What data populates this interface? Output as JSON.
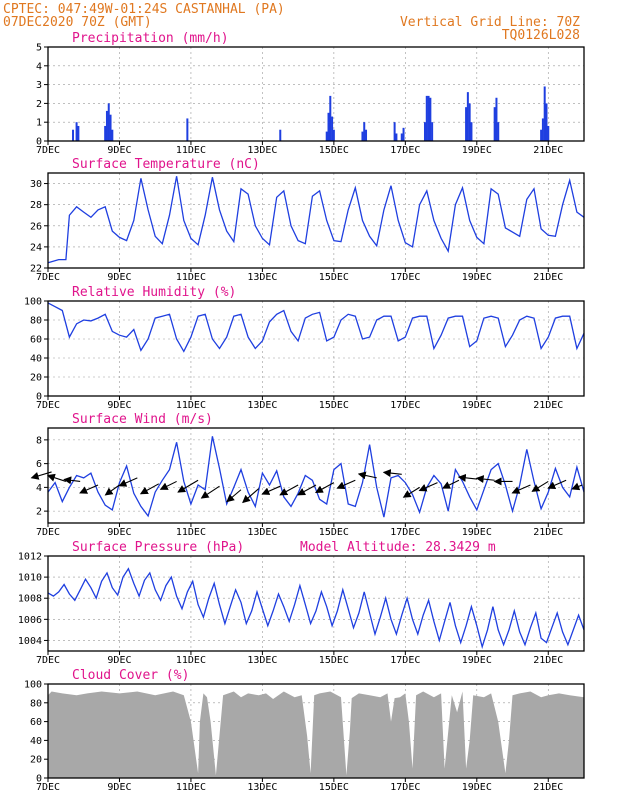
{
  "header": {
    "line1": "CPTEC:   047:49W-01:24S   CASTANHAL (PA)",
    "line2": "07DEC2020 70Z (GMT)",
    "grid_line": "Vertical Grid Line: 70Z",
    "code": "TQ0126L028"
  },
  "colors": {
    "header": "#e07820",
    "title": "#e0148c",
    "series": "#1f3fe0",
    "cloud": "#a8a8a8"
  },
  "chart_data": [
    {
      "id": "precip",
      "type": "bar",
      "title": "Precipitation (mm/h)",
      "x_start_day": 7,
      "x_days": 15,
      "xticks": [
        "7DEC",
        "9DEC",
        "11DEC",
        "13DEC",
        "15DEC",
        "17DEC",
        "19DEC",
        "21DEC"
      ],
      "ylim": [
        0,
        5
      ],
      "yticks": [
        0,
        1,
        2,
        3,
        4,
        5
      ],
      "bars": [
        [
          7.7,
          0.6
        ],
        [
          7.8,
          1.0
        ],
        [
          7.85,
          0.8
        ],
        [
          8.6,
          0.8
        ],
        [
          8.65,
          1.6
        ],
        [
          8.7,
          2.0
        ],
        [
          8.75,
          1.4
        ],
        [
          8.8,
          0.6
        ],
        [
          10.9,
          1.2
        ],
        [
          13.5,
          0.6
        ],
        [
          14.8,
          0.5
        ],
        [
          14.85,
          1.5
        ],
        [
          14.9,
          2.4
        ],
        [
          14.95,
          1.3
        ],
        [
          15.0,
          0.6
        ],
        [
          15.8,
          0.5
        ],
        [
          15.85,
          1.0
        ],
        [
          15.9,
          0.6
        ],
        [
          16.7,
          1.0
        ],
        [
          16.75,
          0.4
        ],
        [
          16.9,
          0.4
        ],
        [
          16.95,
          0.7
        ],
        [
          17.55,
          1.0
        ],
        [
          17.6,
          2.4
        ],
        [
          17.65,
          2.4
        ],
        [
          17.7,
          2.3
        ],
        [
          17.75,
          1.0
        ],
        [
          18.7,
          1.8
        ],
        [
          18.75,
          2.6
        ],
        [
          18.8,
          2.0
        ],
        [
          18.85,
          1.0
        ],
        [
          19.5,
          1.8
        ],
        [
          19.55,
          2.3
        ],
        [
          19.6,
          1.0
        ],
        [
          20.8,
          0.6
        ],
        [
          20.85,
          1.2
        ],
        [
          20.9,
          2.9
        ],
        [
          20.95,
          2.0
        ],
        [
          21.0,
          0.8
        ]
      ]
    },
    {
      "id": "temp",
      "type": "line",
      "title": "Surface Temperature (nC)",
      "x_start_day": 7,
      "x_days": 15,
      "xticks": [
        "7DEC",
        "9DEC",
        "11DEC",
        "13DEC",
        "15DEC",
        "17DEC",
        "19DEC",
        "21DEC"
      ],
      "ylim": [
        22,
        31
      ],
      "yticks": [
        22,
        24,
        26,
        28,
        30
      ],
      "x": [
        7.0,
        7.3,
        7.5,
        7.6,
        7.8,
        8.0,
        8.2,
        8.4,
        8.6,
        8.8,
        9.0,
        9.2,
        9.4,
        9.6,
        9.8,
        10.0,
        10.2,
        10.4,
        10.6,
        10.8,
        11.0,
        11.2,
        11.4,
        11.6,
        11.8,
        12.0,
        12.2,
        12.4,
        12.6,
        12.8,
        13.0,
        13.2,
        13.4,
        13.6,
        13.8,
        14.0,
        14.2,
        14.4,
        14.6,
        14.8,
        15.0,
        15.2,
        15.4,
        15.6,
        15.8,
        16.0,
        16.2,
        16.4,
        16.6,
        16.8,
        17.0,
        17.2,
        17.4,
        17.6,
        17.8,
        18.0,
        18.2,
        18.4,
        18.6,
        18.8,
        19.0,
        19.2,
        19.4,
        19.6,
        19.8,
        20.0,
        20.2,
        20.4,
        20.6,
        20.8,
        21.0,
        21.2,
        21.4,
        21.6,
        21.8,
        22.0
      ],
      "y": [
        22.5,
        22.8,
        22.8,
        27.0,
        27.8,
        27.3,
        26.8,
        27.5,
        27.8,
        25.5,
        24.9,
        24.6,
        26.5,
        30.5,
        27.5,
        25.0,
        24.3,
        27.0,
        30.7,
        26.5,
        24.8,
        24.2,
        27.0,
        30.6,
        27.5,
        25.5,
        24.5,
        29.5,
        29.0,
        26.0,
        24.8,
        24.2,
        28.7,
        29.3,
        26.0,
        24.6,
        24.3,
        28.8,
        29.3,
        26.5,
        24.6,
        24.5,
        27.5,
        29.6,
        26.5,
        25.0,
        24.1,
        27.5,
        29.8,
        26.5,
        24.4,
        24.0,
        28.0,
        29.3,
        26.5,
        24.8,
        23.6,
        28.0,
        29.6,
        26.5,
        24.9,
        24.3,
        29.5,
        29.0,
        25.8,
        25.4,
        25.0,
        28.5,
        29.5,
        25.7,
        25.1,
        25.0,
        28.0,
        30.3,
        27.3,
        26.8
      ]
    },
    {
      "id": "rh",
      "type": "line",
      "title": "Relative Humidity (%)",
      "x_start_day": 7,
      "x_days": 15,
      "xticks": [
        "7DEC",
        "9DEC",
        "11DEC",
        "13DEC",
        "15DEC",
        "17DEC",
        "19DEC",
        "21DEC"
      ],
      "ylim": [
        0,
        100
      ],
      "yticks": [
        0,
        20,
        40,
        60,
        80,
        100
      ],
      "x": [
        7.0,
        7.2,
        7.4,
        7.6,
        7.8,
        8.0,
        8.2,
        8.4,
        8.6,
        8.8,
        9.0,
        9.2,
        9.4,
        9.6,
        9.8,
        10.0,
        10.2,
        10.4,
        10.6,
        10.8,
        11.0,
        11.2,
        11.4,
        11.6,
        11.8,
        12.0,
        12.2,
        12.4,
        12.6,
        12.8,
        13.0,
        13.2,
        13.4,
        13.6,
        13.8,
        14.0,
        14.2,
        14.4,
        14.6,
        14.8,
        15.0,
        15.2,
        15.4,
        15.6,
        15.8,
        16.0,
        16.2,
        16.4,
        16.6,
        16.8,
        17.0,
        17.2,
        17.4,
        17.6,
        17.8,
        18.0,
        18.2,
        18.4,
        18.6,
        18.8,
        19.0,
        19.2,
        19.4,
        19.6,
        19.8,
        20.0,
        20.2,
        20.4,
        20.6,
        20.8,
        21.0,
        21.2,
        21.4,
        21.6,
        21.8,
        22.0
      ],
      "y": [
        98,
        94,
        90,
        62,
        76,
        80,
        79,
        82,
        86,
        68,
        64,
        62,
        70,
        48,
        60,
        82,
        84,
        86,
        60,
        47,
        62,
        84,
        86,
        60,
        50,
        62,
        84,
        86,
        62,
        50,
        58,
        78,
        86,
        90,
        68,
        58,
        82,
        86,
        88,
        58,
        62,
        80,
        86,
        84,
        60,
        62,
        80,
        84,
        84,
        58,
        62,
        82,
        84,
        84,
        50,
        64,
        82,
        84,
        84,
        52,
        58,
        82,
        84,
        82,
        52,
        64,
        80,
        84,
        82,
        50,
        62,
        82,
        84,
        84,
        50,
        66
      ]
    },
    {
      "id": "wind",
      "type": "line",
      "title": "Surface Wind (m/s)",
      "x_start_day": 7,
      "x_days": 15,
      "xticks": [
        "7DEC",
        "9DEC",
        "11DEC",
        "13DEC",
        "15DEC",
        "17DEC",
        "19DEC",
        "21DEC"
      ],
      "ylim": [
        1,
        9
      ],
      "yticks": [
        2,
        4,
        6,
        8
      ],
      "x": [
        7.0,
        7.2,
        7.4,
        7.6,
        7.8,
        8.0,
        8.2,
        8.4,
        8.6,
        8.8,
        9.0,
        9.2,
        9.4,
        9.6,
        9.8,
        10.0,
        10.2,
        10.4,
        10.6,
        10.8,
        11.0,
        11.2,
        11.4,
        11.6,
        11.8,
        12.0,
        12.2,
        12.4,
        12.6,
        12.8,
        13.0,
        13.2,
        13.4,
        13.6,
        13.8,
        14.0,
        14.2,
        14.4,
        14.6,
        14.8,
        15.0,
        15.2,
        15.4,
        15.6,
        15.8,
        16.0,
        16.2,
        16.4,
        16.6,
        16.8,
        17.0,
        17.2,
        17.4,
        17.6,
        17.8,
        18.0,
        18.2,
        18.4,
        18.6,
        18.8,
        19.0,
        19.2,
        19.4,
        19.6,
        19.8,
        20.0,
        20.2,
        20.4,
        20.6,
        20.8,
        21.0,
        21.2,
        21.4,
        21.6,
        21.8,
        22.0
      ],
      "y": [
        3.6,
        4.4,
        2.8,
        4.0,
        5.0,
        4.8,
        5.2,
        3.6,
        2.5,
        2.1,
        4.4,
        5.8,
        3.5,
        2.4,
        1.6,
        3.6,
        4.6,
        5.5,
        7.8,
        4.5,
        2.6,
        4.2,
        3.8,
        8.3,
        5.6,
        2.6,
        4.0,
        5.5,
        3.6,
        2.4,
        5.2,
        4.2,
        5.4,
        3.2,
        2.4,
        3.5,
        5.0,
        4.6,
        3.0,
        2.6,
        5.5,
        6.0,
        2.6,
        2.4,
        4.4,
        7.6,
        4.0,
        1.5,
        4.8,
        5.0,
        4.4,
        3.4,
        1.9,
        4.0,
        5.0,
        4.3,
        2.0,
        5.5,
        4.5,
        3.2,
        2.1,
        3.8,
        5.5,
        6.0,
        4.2,
        2.0,
        4.2,
        7.2,
        4.5,
        2.2,
        3.6,
        5.6,
        4.0,
        3.2,
        5.7,
        3.6
      ],
      "vectors": [
        [
          7.1,
          5.3,
          -1.0,
          -0.3
        ],
        [
          7.5,
          4.5,
          -0.9,
          0.3
        ],
        [
          7.9,
          4.5,
          -0.8,
          0.1
        ],
        [
          8.4,
          4.2,
          -0.9,
          -0.4
        ],
        [
          9.0,
          4.2,
          -0.7,
          -0.5
        ],
        [
          9.5,
          4.8,
          -0.9,
          -0.4
        ],
        [
          10.1,
          4.3,
          -0.9,
          -0.5
        ],
        [
          10.6,
          4.5,
          -0.8,
          -0.4
        ],
        [
          11.2,
          4.6,
          -1.0,
          -0.6
        ],
        [
          11.8,
          4.1,
          -0.9,
          -0.6
        ],
        [
          12.4,
          3.8,
          -0.7,
          -0.6
        ],
        [
          12.9,
          3.9,
          -0.8,
          -0.7
        ],
        [
          13.5,
          4.1,
          -0.9,
          -0.4
        ],
        [
          14.0,
          4.2,
          -0.9,
          -0.5
        ],
        [
          14.5,
          4.2,
          -0.9,
          -0.5
        ],
        [
          15.0,
          4.4,
          -0.9,
          -0.5
        ],
        [
          15.6,
          4.6,
          -0.9,
          -0.4
        ],
        [
          16.2,
          4.8,
          -0.9,
          0.2
        ],
        [
          16.9,
          5.1,
          -0.9,
          0.1
        ],
        [
          17.4,
          4.0,
          -0.8,
          -0.5
        ],
        [
          17.9,
          4.4,
          -0.9,
          -0.4
        ],
        [
          18.5,
          4.6,
          -0.8,
          -0.4
        ],
        [
          19.0,
          4.7,
          -0.9,
          0.1
        ],
        [
          19.5,
          4.6,
          -0.9,
          0.1
        ],
        [
          20.0,
          4.5,
          -0.9,
          0.0
        ],
        [
          20.5,
          4.2,
          -0.9,
          -0.4
        ],
        [
          21.0,
          4.5,
          -0.8,
          -0.5
        ],
        [
          21.5,
          4.6,
          -0.9,
          -0.4
        ],
        [
          21.95,
          4.2,
          -0.5,
          -0.2
        ]
      ]
    },
    {
      "id": "pressure",
      "type": "line",
      "title": "Surface Pressure (hPa)",
      "annotation": "Model Altitude: 28.3429 m",
      "x_start_day": 7,
      "x_days": 15,
      "xticks": [
        "7DEC",
        "9DEC",
        "11DEC",
        "13DEC",
        "15DEC",
        "17DEC",
        "19DEC",
        "21DEC"
      ],
      "ylim": [
        1003,
        1012
      ],
      "yticks": [
        1004,
        1006,
        1008,
        1010,
        1012
      ],
      "x": [
        7.0,
        7.15,
        7.3,
        7.45,
        7.6,
        7.75,
        7.9,
        8.05,
        8.2,
        8.35,
        8.5,
        8.65,
        8.8,
        8.95,
        9.1,
        9.25,
        9.4,
        9.55,
        9.7,
        9.85,
        10.0,
        10.15,
        10.3,
        10.45,
        10.6,
        10.75,
        10.9,
        11.05,
        11.2,
        11.35,
        11.5,
        11.65,
        11.8,
        11.95,
        12.1,
        12.25,
        12.4,
        12.55,
        12.7,
        12.85,
        13.0,
        13.15,
        13.3,
        13.45,
        13.6,
        13.75,
        13.9,
        14.05,
        14.2,
        14.35,
        14.5,
        14.65,
        14.8,
        14.95,
        15.1,
        15.25,
        15.4,
        15.55,
        15.7,
        15.85,
        16.0,
        16.15,
        16.3,
        16.45,
        16.6,
        16.75,
        16.9,
        17.05,
        17.2,
        17.35,
        17.5,
        17.65,
        17.8,
        17.95,
        18.1,
        18.25,
        18.4,
        18.55,
        18.7,
        18.85,
        19.0,
        19.15,
        19.3,
        19.45,
        19.6,
        19.75,
        19.9,
        20.05,
        20.2,
        20.35,
        20.5,
        20.65,
        20.8,
        20.95,
        21.1,
        21.25,
        21.4,
        21.55,
        21.7,
        21.85,
        22.0
      ],
      "y": [
        1008.5,
        1008.2,
        1008.6,
        1009.3,
        1008.4,
        1007.8,
        1008.8,
        1009.8,
        1009.0,
        1008.0,
        1009.6,
        1010.4,
        1009.0,
        1008.3,
        1010.0,
        1010.8,
        1009.4,
        1008.2,
        1009.7,
        1010.4,
        1008.8,
        1007.8,
        1009.2,
        1010.0,
        1008.2,
        1007.0,
        1008.6,
        1009.6,
        1007.4,
        1006.2,
        1008.0,
        1009.4,
        1007.4,
        1005.6,
        1007.2,
        1008.8,
        1007.6,
        1005.6,
        1006.8,
        1008.6,
        1007.0,
        1005.4,
        1006.8,
        1008.4,
        1007.2,
        1005.8,
        1007.4,
        1009.2,
        1007.4,
        1005.6,
        1006.8,
        1008.6,
        1007.2,
        1005.4,
        1006.8,
        1008.8,
        1007.0,
        1005.2,
        1006.6,
        1008.6,
        1006.6,
        1004.6,
        1006.2,
        1008.0,
        1006.0,
        1004.6,
        1006.4,
        1008.0,
        1006.0,
        1004.6,
        1006.4,
        1007.8,
        1005.8,
        1004.0,
        1005.8,
        1007.6,
        1005.4,
        1003.8,
        1005.4,
        1007.2,
        1005.4,
        1003.4,
        1005.0,
        1007.2,
        1005.0,
        1003.6,
        1005.0,
        1006.8,
        1004.8,
        1003.6,
        1005.2,
        1006.6,
        1004.2,
        1003.8,
        1005.2,
        1006.6,
        1004.8,
        1003.6,
        1005.0,
        1006.4,
        1005.0
      ]
    },
    {
      "id": "cloud",
      "type": "area",
      "title": "Cloud Cover (%)",
      "x_start_day": 7,
      "x_days": 15,
      "xticks": [
        "7DEC",
        "9DEC",
        "11DEC",
        "13DEC",
        "15DEC",
        "17DEC",
        "19DEC",
        "21DEC"
      ],
      "ylim": [
        0,
        100
      ],
      "yticks": [
        0,
        20,
        40,
        60,
        80,
        100
      ],
      "x": [
        7.0,
        7.1,
        7.4,
        7.8,
        8.1,
        8.5,
        9.0,
        9.5,
        10.0,
        10.5,
        10.8,
        11.0,
        11.2,
        11.25,
        11.35,
        11.45,
        11.55,
        11.7,
        11.9,
        12.2,
        12.4,
        12.6,
        12.9,
        13.1,
        13.3,
        13.6,
        13.9,
        14.1,
        14.25,
        14.35,
        14.45,
        14.6,
        14.9,
        15.2,
        15.35,
        15.45,
        15.5,
        15.7,
        16.0,
        16.3,
        16.5,
        16.6,
        16.7,
        16.85,
        17.0,
        17.1,
        17.2,
        17.3,
        17.5,
        17.8,
        18.0,
        18.1,
        18.3,
        18.45,
        18.6,
        18.7,
        18.8,
        18.9,
        19.2,
        19.4,
        19.6,
        19.8,
        19.9,
        20.0,
        20.2,
        20.5,
        20.8,
        21.0,
        21.3,
        21.6,
        22.0
      ],
      "y": [
        88,
        92,
        90,
        88,
        90,
        92,
        90,
        92,
        88,
        92,
        88,
        60,
        5,
        60,
        90,
        86,
        60,
        3,
        88,
        92,
        86,
        90,
        88,
        90,
        84,
        92,
        86,
        88,
        45,
        5,
        88,
        90,
        92,
        86,
        3,
        50,
        85,
        90,
        88,
        86,
        90,
        60,
        85,
        86,
        90,
        60,
        10,
        88,
        92,
        86,
        90,
        10,
        88,
        70,
        92,
        10,
        40,
        88,
        86,
        90,
        60,
        5,
        40,
        88,
        90,
        92,
        86,
        88,
        90,
        88,
        86
      ]
    }
  ]
}
